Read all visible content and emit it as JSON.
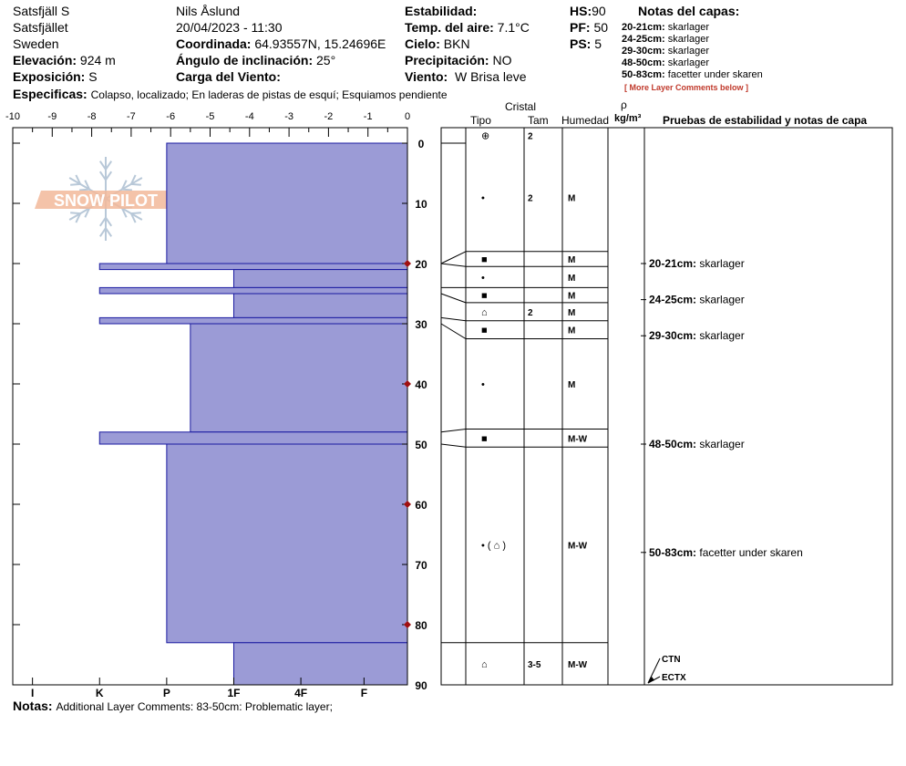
{
  "header": {
    "location": "Satsfjäll S",
    "area": "Satsfjället",
    "country": "Sweden",
    "elevation_label": "Elevación:",
    "elevation_value": "924 m",
    "exposure_label": "Exposición:",
    "exposure_value": "S",
    "observer": "Nils Åslund",
    "datetime": "20/04/2023 - 11:30",
    "coord_label": "Coordinada:",
    "coord_value": "64.93557N, 15.24696E",
    "slope_label": "Ángulo de inclinación:",
    "slope_value": "25°",
    "wind_load_label": "Carga del Viento:",
    "wind_load_value": "",
    "stability_label": "Estabilidad:",
    "stability_value": "",
    "air_temp_label": "Temp. del aire:",
    "air_temp_value": "7.1°C",
    "sky_label": "Cielo:",
    "sky_value": "BKN",
    "precip_label": "Precipitación:",
    "precip_value": "NO",
    "wind_label": "Viento:",
    "wind_value": "W Brisa leve",
    "hs_label": "HS:",
    "hs_value": "90",
    "pf_label": "PF:",
    "pf_value": "50",
    "ps_label": "PS:",
    "ps_value": "5",
    "specifics_label": "Especificas:",
    "specifics_value": "Colapso, localizado;  En laderas de pistas de esquí;  Esquiamos pendiente"
  },
  "layer_notes": {
    "title": "Notas del capas:",
    "items": [
      {
        "range": "20-21cm:",
        "text": "skarlager"
      },
      {
        "range": "24-25cm:",
        "text": "skarlager"
      },
      {
        "range": "29-30cm:",
        "text": "skarlager"
      },
      {
        "range": "48-50cm:",
        "text": "skarlager"
      },
      {
        "range": "50-83cm:",
        "text": "facetter under skaren"
      }
    ],
    "more": "[ More Layer Comments below ]"
  },
  "logo": {
    "text": "SNOW PILOT"
  },
  "columns": {
    "crystal": "Cristal",
    "type": "Tipo",
    "size": "Tam",
    "moisture": "Humedad",
    "rho": "ρ",
    "density_unit": "kg/m³",
    "tests": "Pruebas de estabilidad y notas de capa"
  },
  "chart_data": {
    "type": "bar",
    "description_axis_top": "hand hardness scale",
    "x_ticks_top": [
      "-10",
      "-9",
      "-8",
      "-7",
      "-6",
      "-5",
      "-4",
      "-3",
      "-2",
      "-1",
      "0"
    ],
    "x_ticks_bottom": [
      {
        "label": "I",
        "value": -9.5
      },
      {
        "label": "K",
        "value": -7.8
      },
      {
        "label": "P",
        "value": -6.1
      },
      {
        "label": "1F",
        "value": -4.4
      },
      {
        "label": "4F",
        "value": -2.7
      },
      {
        "label": "F",
        "value": -1.1
      }
    ],
    "xlim": [
      -10,
      0
    ],
    "ylim": [
      0,
      90
    ],
    "y_ticks": [
      0,
      10,
      20,
      30,
      40,
      50,
      60,
      70,
      80,
      90
    ],
    "temp_markers_depth": [
      20,
      40,
      60,
      80
    ],
    "layers": [
      {
        "top": 0,
        "bottom": 20,
        "hardness": -6.1
      },
      {
        "top": 20,
        "bottom": 21,
        "hardness": -7.8
      },
      {
        "top": 21,
        "bottom": 24,
        "hardness": -4.4
      },
      {
        "top": 24,
        "bottom": 25,
        "hardness": -7.8
      },
      {
        "top": 25,
        "bottom": 29,
        "hardness": -4.4
      },
      {
        "top": 29,
        "bottom": 30,
        "hardness": -7.8
      },
      {
        "top": 30,
        "bottom": 48,
        "hardness": -5.5
      },
      {
        "top": 48,
        "bottom": 50,
        "hardness": -7.8
      },
      {
        "top": 50,
        "bottom": 83,
        "hardness": -6.1
      },
      {
        "top": 83,
        "bottom": 90,
        "hardness": -4.4
      }
    ]
  },
  "table_rows": [
    {
      "top": 0,
      "bottom": 0,
      "crystal": "⊕",
      "size": "2",
      "moisture": ""
    },
    {
      "top": 0,
      "bottom": 18,
      "crystal": "•",
      "size": "2",
      "moisture": "M"
    },
    {
      "top": 18,
      "bottom": 20.5,
      "crystal": "■",
      "size": "",
      "moisture": "M"
    },
    {
      "top": 20.5,
      "bottom": 24,
      "crystal": "•",
      "size": "",
      "moisture": "M"
    },
    {
      "top": 24,
      "bottom": 26.5,
      "crystal": "■",
      "size": "",
      "moisture": "M"
    },
    {
      "top": 26.5,
      "bottom": 29.5,
      "crystal": "⌂",
      "size": "2",
      "moisture": "M"
    },
    {
      "top": 29.5,
      "bottom": 32.5,
      "crystal": "■",
      "size": "",
      "moisture": "M"
    },
    {
      "top": 32.5,
      "bottom": 47.5,
      "crystal": "•",
      "size": "",
      "moisture": "M"
    },
    {
      "top": 47.5,
      "bottom": 50.5,
      "crystal": "■",
      "size": "",
      "moisture": "M-W"
    },
    {
      "top": 50.5,
      "bottom": 83,
      "crystal": "• ( ⌂ )",
      "size": "",
      "moisture": "M-W"
    },
    {
      "top": 83,
      "bottom": 90,
      "crystal": "⌂",
      "size": "3-5",
      "moisture": "M-W"
    }
  ],
  "right_notes": [
    {
      "depth": 20,
      "range": "20-21cm:",
      "text": "skarlager"
    },
    {
      "depth": 26,
      "range": "24-25cm:",
      "text": "skarlager"
    },
    {
      "depth": 32,
      "range": "29-30cm:",
      "text": "skarlager"
    },
    {
      "depth": 50,
      "range": "48-50cm:",
      "text": "skarlager"
    },
    {
      "depth": 68,
      "range": "50-83cm:",
      "text": "facetter under skaren"
    }
  ],
  "tests": [
    {
      "label": "CTN"
    },
    {
      "label": "ECTX"
    }
  ],
  "footer": {
    "notes_label": "Notas:",
    "notes_value": "Additional Layer Comments: 83-50cm: Problematic layer;"
  },
  "colors": {
    "fill": "#9b9bd6",
    "edge": "#1a1aa0",
    "marker": "#a01010",
    "logo_text": "#f2b89a",
    "logo_flake": "#b8c8d8",
    "more_link": "#c0392b"
  }
}
